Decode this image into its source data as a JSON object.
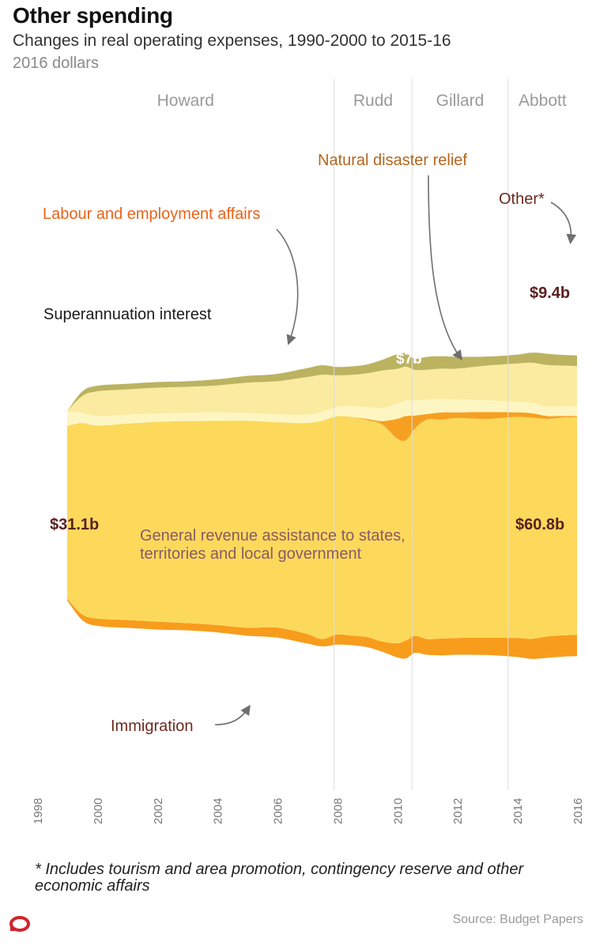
{
  "title": "Other spending",
  "subtitle": "Changes in real operating expenses, 1990-2000 to 2015-16",
  "units": "2016 dollars",
  "footnote": "* Includes tourism and area promotion, contingency reserve and other economic affairs",
  "source": "Source: Budget Papers",
  "colors": {
    "immigration": "#f89c1c",
    "general": "#fcd95b",
    "disaster": "#f6a021",
    "labour": "#fef6c2",
    "super": "#faeba0",
    "other": "#bcb361",
    "divider": "#dddddd",
    "logo": "#d2232a"
  },
  "chart_data": {
    "type": "area",
    "stacked": true,
    "xlim": [
      1998,
      2016
    ],
    "x_ticks": [
      "1998",
      "2000",
      "2002",
      "2004",
      "2006",
      "2008",
      "2010",
      "2012",
      "2014",
      "2016"
    ],
    "x": [
      1999,
      1999.5,
      2000,
      2001,
      2002,
      2003,
      2004,
      2005,
      2006,
      2007,
      2007.5,
      2008,
      2008.5,
      2009,
      2009.5,
      2010,
      2010.3,
      2010.6,
      2011,
      2011.5,
      2012,
      2013,
      2014,
      2014.5,
      2015,
      2015.5,
      2016
    ],
    "series": [
      {
        "key": "immigration",
        "name": "Immigration",
        "values": [
          0.3,
          1.0,
          1.3,
          1.4,
          1.4,
          1.3,
          1.3,
          1.4,
          1.8,
          1.7,
          1.3,
          1.8,
          1.7,
          1.8,
          1.8,
          2.5,
          3.2,
          3.0,
          2.8,
          3.0,
          3.0,
          3.1,
          3.4,
          3.6,
          3.8,
          3.8,
          3.8
        ]
      },
      {
        "key": "general",
        "name": "General revenue assistance to states, territories and local government",
        "values": [
          30.8,
          34.1,
          34.4,
          35.0,
          35.6,
          36.0,
          36.4,
          36.9,
          36.6,
          37.6,
          38.9,
          38.9,
          39.0,
          38.7,
          38.7,
          36.5,
          35.7,
          37.0,
          39.1,
          39.0,
          39.2,
          39.0,
          39.4,
          39.4,
          38.8,
          38.8,
          38.8
        ]
      },
      {
        "key": "disaster",
        "name": "Natural disaster relief",
        "values": [
          0.0,
          0.0,
          0.0,
          0.0,
          0.0,
          0.0,
          0.0,
          0.0,
          0.0,
          0.0,
          0.0,
          0.0,
          0.0,
          0.2,
          0.6,
          3.5,
          4.3,
          2.3,
          1.0,
          1.3,
          1.0,
          1.2,
          0.8,
          0.8,
          0.5,
          0.3,
          0.2
        ]
      },
      {
        "key": "labour",
        "name": "Labour and employment affairs",
        "values": [
          2.6,
          1.8,
          1.7,
          1.6,
          1.5,
          1.5,
          1.5,
          1.4,
          1.4,
          1.5,
          1.6,
          1.7,
          1.9,
          2.1,
          2.3,
          2.7,
          2.8,
          2.7,
          2.6,
          2.4,
          2.3,
          2.1,
          1.9,
          1.8,
          1.7,
          1.7,
          1.7
        ]
      },
      {
        "key": "super",
        "name": "Superannuation interest",
        "values": [
          0.0,
          3.0,
          4.4,
          4.5,
          4.6,
          4.6,
          4.8,
          5.4,
          5.9,
          6.7,
          6.6,
          5.6,
          5.6,
          6.0,
          6.7,
          6.2,
          6.0,
          5.4,
          5.3,
          5.4,
          5.5,
          6.2,
          6.8,
          7.2,
          7.4,
          7.3,
          7.2
        ]
      },
      {
        "key": "other",
        "name": "Other*",
        "values": [
          0.0,
          0.8,
          1.0,
          1.0,
          1.0,
          1.0,
          1.1,
          1.2,
          1.3,
          1.6,
          1.7,
          1.5,
          1.5,
          1.6,
          1.9,
          2.6,
          2.4,
          2.0,
          2.3,
          2.2,
          2.1,
          1.6,
          1.6,
          1.8,
          2.0,
          1.9,
          1.9
        ]
      }
    ],
    "eras": [
      {
        "label": "Howard",
        "start": 1998,
        "end": 2007.9
      },
      {
        "label": "Rudd",
        "start": 2007.9,
        "end": 2010.5
      },
      {
        "label": "Gillard",
        "start": 2010.5,
        "end": 2013.7
      },
      {
        "label": "Abbott",
        "start": 2013.7,
        "end": 2016
      }
    ],
    "value_labels": [
      "$31.1b",
      "$60.8b",
      "$9.4b",
      "$7b",
      "$3.8b"
    ],
    "annotations": {
      "labour": "Labour and employment affairs",
      "disaster": "Natural disaster relief",
      "other": "Other*",
      "super": "Superannuation interest",
      "general_line1": "General revenue assistance to states,",
      "general_line2": "territories and local government",
      "immigration": "Immigration"
    }
  }
}
